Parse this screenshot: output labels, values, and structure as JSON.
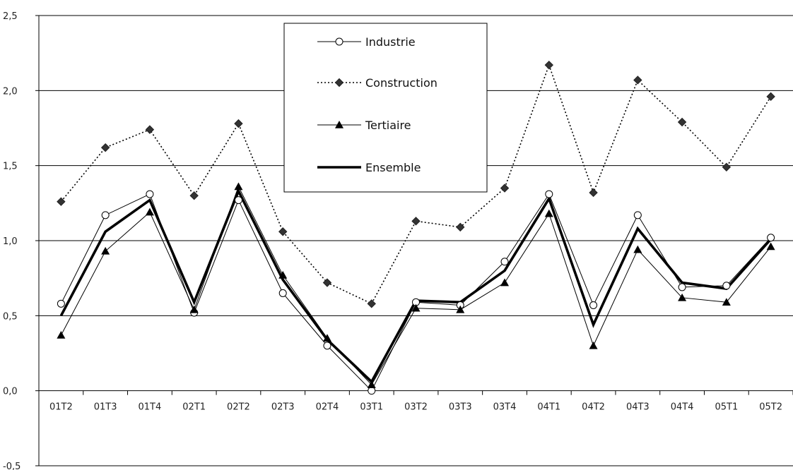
{
  "chart_data": {
    "type": "line",
    "title": "",
    "xlabel": "",
    "ylabel": "",
    "categories": [
      "01T2",
      "01T3",
      "01T4",
      "02T1",
      "02T2",
      "02T3",
      "02T4",
      "03T1",
      "03T2",
      "03T3",
      "03T4",
      "04T1",
      "04T2",
      "04T3",
      "04T4",
      "05T1",
      "05T2"
    ],
    "ylim": [
      -0.5,
      2.5
    ],
    "yticks": [
      -0.5,
      0.0,
      0.5,
      1.0,
      1.5,
      2.0,
      2.5
    ],
    "ytick_labels": [
      "-0,5",
      "0,0",
      "0,5",
      "1,0",
      "1,5",
      "2,0",
      "2,5"
    ],
    "grid": "horizontal",
    "legend_position": "top-center",
    "series": [
      {
        "name": "Industrie",
        "marker": "open-circle",
        "line": "thin-solid",
        "color": "#000000",
        "values": [
          0.58,
          1.17,
          1.31,
          0.52,
          1.27,
          0.65,
          0.3,
          0.0,
          0.59,
          0.57,
          0.86,
          1.31,
          0.57,
          1.17,
          0.69,
          0.7,
          1.02
        ]
      },
      {
        "name": "Construction",
        "marker": "diamond",
        "line": "dotted",
        "color": "#000000",
        "values": [
          1.26,
          1.62,
          1.74,
          1.3,
          1.78,
          1.06,
          0.72,
          0.58,
          1.13,
          1.09,
          1.35,
          2.17,
          1.32,
          2.07,
          1.79,
          1.49,
          1.96
        ]
      },
      {
        "name": "Tertiaire",
        "marker": "triangle",
        "line": "thin-solid",
        "color": "#000000",
        "values": [
          0.37,
          0.93,
          1.19,
          0.54,
          1.36,
          0.77,
          0.35,
          0.04,
          0.55,
          0.54,
          0.72,
          1.18,
          0.3,
          0.94,
          0.62,
          0.59,
          0.96
        ]
      },
      {
        "name": "Ensemble",
        "marker": "none",
        "line": "thick-solid",
        "color": "#000000",
        "values": [
          0.5,
          1.06,
          1.27,
          0.59,
          1.33,
          0.74,
          0.34,
          0.06,
          0.6,
          0.59,
          0.8,
          1.28,
          0.44,
          1.08,
          0.72,
          0.68,
          1.01
        ]
      }
    ]
  }
}
